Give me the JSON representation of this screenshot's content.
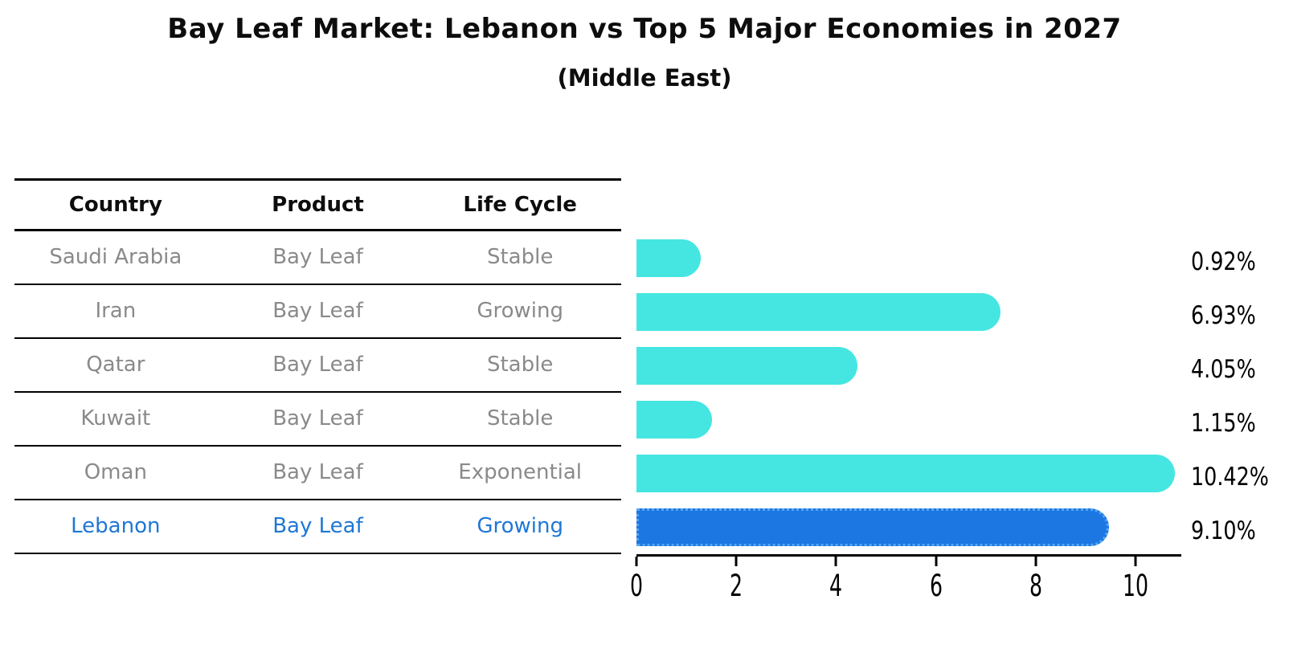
{
  "title": "Bay Leaf Market: Lebanon vs Top 5 Major Economies in 2027",
  "subtitle": "(Middle East)",
  "table": {
    "headers": [
      "Country",
      "Product",
      "Life Cycle"
    ],
    "rows": [
      {
        "country": "Saudi Arabia",
        "product": "Bay Leaf",
        "life_cycle": "Stable",
        "highlight": false
      },
      {
        "country": "Iran",
        "product": "Bay Leaf",
        "life_cycle": "Growing",
        "highlight": false
      },
      {
        "country": "Qatar",
        "product": "Bay Leaf",
        "life_cycle": "Stable",
        "highlight": false
      },
      {
        "country": "Kuwait",
        "product": "Bay Leaf",
        "life_cycle": "Stable",
        "highlight": false
      },
      {
        "country": "Oman",
        "product": "Bay Leaf",
        "life_cycle": "Exponential",
        "highlight": false
      },
      {
        "country": "Lebanon",
        "product": "Bay Leaf",
        "life_cycle": "Growing",
        "highlight": true
      }
    ]
  },
  "chart_data": {
    "type": "bar",
    "orientation": "horizontal",
    "title": "Bay Leaf Market: Lebanon vs Top 5 Major Economies in 2027",
    "subtitle": "(Middle East)",
    "categories": [
      "Saudi Arabia",
      "Iran",
      "Qatar",
      "Kuwait",
      "Oman",
      "Lebanon"
    ],
    "values": [
      0.92,
      6.93,
      4.05,
      1.15,
      10.42,
      9.1
    ],
    "value_labels": [
      "0.92%",
      "6.93%",
      "4.05%",
      "1.15%",
      "10.42%",
      "9.10%"
    ],
    "x_ticks": [
      0,
      2,
      4,
      6,
      8,
      10
    ],
    "xlim": [
      0,
      10.95
    ],
    "grid": false,
    "legend": null,
    "bar_color": "#45e6e1",
    "highlight_index": 5,
    "highlight_color": "#1c77e3",
    "highlight_border_color": "#55a7f0"
  },
  "colors": {
    "table_text": "#8a8a8a",
    "highlight_text": "#1f77d4",
    "axis_line": "#000000"
  }
}
